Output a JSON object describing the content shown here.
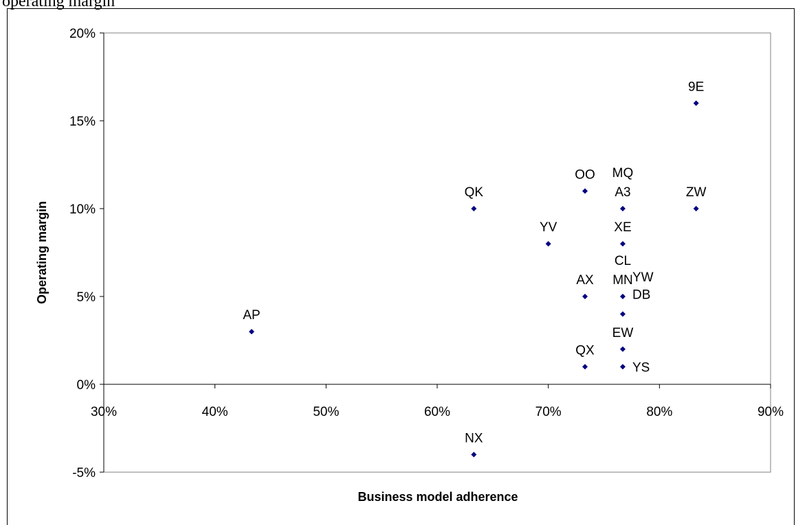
{
  "caption": "operating margin",
  "chart_data": {
    "type": "scatter",
    "xlabel": "Business model adherence",
    "ylabel": "Operating margin",
    "xlim": [
      0.3,
      0.9
    ],
    "ylim": [
      -0.05,
      0.2
    ],
    "x_ticks": [
      {
        "value": 0.3,
        "label": "30%"
      },
      {
        "value": 0.4,
        "label": "40%"
      },
      {
        "value": 0.5,
        "label": "50%"
      },
      {
        "value": 0.6,
        "label": "60%"
      },
      {
        "value": 0.7,
        "label": "70%"
      },
      {
        "value": 0.8,
        "label": "80%"
      },
      {
        "value": 0.9,
        "label": "90%"
      }
    ],
    "y_ticks": [
      {
        "value": 0.2,
        "label": "20%"
      },
      {
        "value": 0.15,
        "label": "15%"
      },
      {
        "value": 0.1,
        "label": "10%"
      },
      {
        "value": 0.05,
        "label": "5%"
      },
      {
        "value": 0.0,
        "label": "0%"
      },
      {
        "value": -0.05,
        "label": "-5%"
      }
    ],
    "grid": false,
    "marker_color": "#000080",
    "points": [
      {
        "label": "AP",
        "x": 0.433,
        "y": 0.03,
        "label_pos": "above"
      },
      {
        "label": "QK",
        "x": 0.633,
        "y": 0.1,
        "label_pos": "above"
      },
      {
        "label": "NX",
        "x": 0.633,
        "y": -0.04,
        "label_pos": "above"
      },
      {
        "label": "YV",
        "x": 0.7,
        "y": 0.08,
        "label_pos": "above"
      },
      {
        "label": "OO",
        "x": 0.733,
        "y": 0.11,
        "label_pos": "above"
      },
      {
        "label": "AX",
        "x": 0.733,
        "y": 0.05,
        "label_pos": "above"
      },
      {
        "label": "QX",
        "x": 0.733,
        "y": 0.01,
        "label_pos": "above"
      },
      {
        "label": "MQ",
        "x": 0.767,
        "y": 0.1,
        "label_pos": "above2"
      },
      {
        "label": "A3",
        "x": 0.767,
        "y": 0.1,
        "label_pos": "above"
      },
      {
        "label": "XE",
        "x": 0.767,
        "y": 0.08,
        "label_pos": "above"
      },
      {
        "label": "CL",
        "x": 0.767,
        "y": 0.05,
        "label_pos": "above2"
      },
      {
        "label": "MN",
        "x": 0.767,
        "y": 0.05,
        "label_pos": "above"
      },
      {
        "label": "YW",
        "x": 0.767,
        "y": 0.05,
        "label_pos": "upper-right"
      },
      {
        "label": "DB",
        "x": 0.767,
        "y": 0.04,
        "label_pos": "upper-right"
      },
      {
        "label": "EW",
        "x": 0.767,
        "y": 0.02,
        "label_pos": "above"
      },
      {
        "label": "YS",
        "x": 0.767,
        "y": 0.01,
        "label_pos": "right"
      },
      {
        "label": "9E",
        "x": 0.833,
        "y": 0.16,
        "label_pos": "above"
      },
      {
        "label": "ZW",
        "x": 0.833,
        "y": 0.1,
        "label_pos": "above"
      }
    ]
  }
}
